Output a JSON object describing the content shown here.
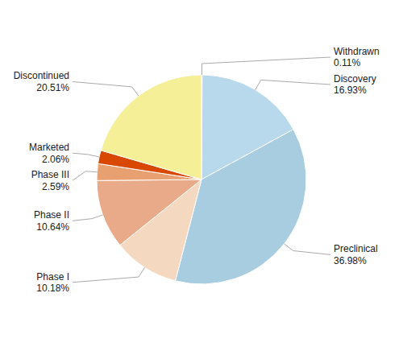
{
  "chart_data": {
    "type": "pie",
    "categories": [
      "Withdrawn",
      "Discovery",
      "Preclinical",
      "Phase I",
      "Phase II",
      "Phase III",
      "Marketed",
      "Discontinued"
    ],
    "values": [
      0.11,
      16.93,
      36.98,
      10.18,
      10.64,
      2.59,
      2.06,
      20.51
    ],
    "value_labels": [
      "0.11%",
      "16.93%",
      "36.98%",
      "10.18%",
      "10.64%",
      "2.59%",
      "2.06%",
      "20.51%"
    ],
    "colors": [
      "#a8d870",
      "#b8d8ec",
      "#a8cce0",
      "#f5d8c0",
      "#e8aa88",
      "#e8a070",
      "#d84800",
      "#f5f098"
    ],
    "data_labels": true
  }
}
